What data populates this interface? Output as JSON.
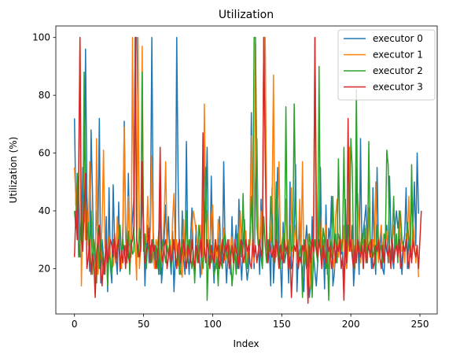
{
  "chart_data": {
    "type": "line",
    "title": "Utilization",
    "xlabel": "Index",
    "ylabel": "Utilization (%)",
    "xlim": [
      -13.5,
      262.5
    ],
    "ylim": [
      4.3,
      104.0
    ],
    "x_ticks": [
      0,
      50,
      100,
      150,
      200,
      250
    ],
    "y_ticks": [
      20,
      40,
      60,
      80,
      100
    ],
    "grid": false,
    "legend_position": "top-right",
    "series": [
      {
        "name": "executor 0",
        "color": "#1f77b4",
        "values": [
          72,
          42,
          38,
          52,
          24,
          25,
          55,
          36,
          96,
          45,
          33,
          19,
          68,
          47,
          21,
          26,
          40,
          33,
          72,
          15,
          30,
          24,
          19,
          38,
          12,
          48,
          21,
          15,
          49,
          30,
          24,
          18,
          43,
          19,
          22,
          29,
          71,
          36,
          24,
          53,
          28,
          30,
          38,
          45,
          100,
          100,
          72,
          33,
          26,
          47,
          35,
          14,
          28,
          35,
          22,
          40,
          100,
          33,
          20,
          28,
          26,
          18,
          48,
          15,
          22,
          31,
          42,
          28,
          38,
          24,
          18,
          33,
          12,
          24,
          100,
          51,
          22,
          18,
          40,
          23,
          18,
          64,
          26,
          18,
          30,
          41,
          22,
          18,
          35,
          26,
          28,
          17,
          24,
          30,
          65,
          38,
          62,
          22,
          21,
          52,
          26,
          15,
          30,
          24,
          20,
          38,
          25,
          20,
          57,
          28,
          15,
          24,
          30,
          18,
          38,
          22,
          28,
          35,
          20,
          44,
          24,
          16,
          28,
          37,
          22,
          16,
          20,
          30,
          74,
          35,
          20,
          45,
          65,
          30,
          18,
          44,
          22,
          100,
          100,
          35,
          22,
          27,
          14,
          48,
          15,
          24,
          30,
          55,
          28,
          22,
          10,
          36,
          22,
          25,
          28,
          15,
          50,
          20,
          22,
          30,
          56,
          12,
          25,
          36,
          22,
          20,
          12,
          28,
          35,
          24,
          10,
          15,
          38,
          25,
          19,
          14,
          22,
          32,
          55,
          20,
          30,
          13,
          42,
          18,
          34,
          30,
          45,
          14,
          18,
          26,
          22,
          32,
          30,
          25,
          26,
          11,
          44,
          20,
          30,
          28,
          26,
          35,
          14,
          22,
          55,
          30,
          18,
          65,
          26,
          33,
          37,
          42,
          25,
          28,
          30,
          20,
          48,
          26,
          18,
          55,
          25,
          24,
          35,
          20,
          18,
          28,
          35,
          22,
          52,
          32,
          24,
          20,
          35,
          40,
          34,
          38,
          26,
          18,
          28,
          32,
          48,
          20,
          31,
          26,
          45,
          35,
          50,
          28,
          60,
          39
        ]
      },
      {
        "name": "executor 1",
        "color": "#ff7f0e",
        "values": [
          55,
          44,
          30,
          45,
          100,
          14,
          40,
          57,
          30,
          40,
          28,
          57,
          40,
          30,
          24,
          11,
          65,
          18,
          25,
          23,
          36,
          61,
          27,
          29,
          15,
          31,
          24,
          20,
          21,
          26,
          24,
          38,
          29,
          22,
          20,
          36,
          69,
          30,
          22,
          45,
          30,
          24,
          100,
          32,
          28,
          16,
          100,
          20,
          28,
          97,
          28,
          32,
          29,
          45,
          28,
          34,
          59,
          24,
          20,
          30,
          28,
          32,
          22,
          28,
          30,
          39,
          57,
          28,
          25,
          30,
          22,
          37,
          46,
          23,
          30,
          21,
          30,
          20,
          17,
          37,
          23,
          26,
          30,
          29,
          24,
          33,
          40,
          37,
          32,
          28,
          22,
          35,
          18,
          24,
          77,
          36,
          40,
          28,
          25,
          38,
          42,
          22,
          30,
          20,
          37,
          32,
          24,
          28,
          34,
          23,
          24,
          28,
          30,
          22,
          31,
          24,
          28,
          20,
          29,
          25,
          40,
          30,
          24,
          22,
          33,
          21,
          30,
          28,
          66,
          26,
          22,
          98,
          54,
          30,
          28,
          40,
          28,
          100,
          100,
          35,
          24,
          28,
          30,
          40,
          87,
          30,
          24,
          34,
          57,
          29,
          24,
          32,
          28,
          44,
          25,
          30,
          20,
          48,
          24,
          30,
          35,
          22,
          28,
          44,
          25,
          57,
          22,
          30,
          20,
          32,
          28,
          13,
          22,
          30,
          100,
          50,
          26,
          28,
          38,
          24,
          26,
          30,
          35,
          22,
          20,
          30,
          28,
          24,
          20,
          38,
          44,
          24,
          28,
          30,
          26,
          35,
          22,
          20,
          28,
          62,
          26,
          30,
          24,
          22,
          28,
          46,
          36,
          22,
          28,
          30,
          26,
          34,
          22,
          41,
          28,
          24,
          30,
          26,
          50,
          28,
          22,
          30,
          35,
          26,
          24,
          30,
          33,
          28,
          22,
          25,
          30,
          35,
          26,
          32,
          24,
          30,
          40,
          26,
          28,
          22,
          32,
          30,
          45,
          28,
          24,
          36,
          30,
          22,
          28,
          17
        ]
      },
      {
        "name": "executor 2",
        "color": "#2ca02c",
        "values": [
          40,
          34,
          53,
          24,
          30,
          38,
          28,
          88,
          45,
          30,
          36,
          22,
          40,
          18,
          30,
          25,
          15,
          34,
          20,
          30,
          25,
          18,
          22,
          30,
          14,
          26,
          22,
          18,
          30,
          28,
          22,
          26,
          30,
          35,
          24,
          30,
          25,
          28,
          22,
          33,
          18,
          30,
          25,
          26,
          100,
          30,
          24,
          34,
          28,
          88,
          26,
          32,
          20,
          30,
          25,
          28,
          22,
          30,
          26,
          28,
          20,
          33,
          18,
          24,
          30,
          26,
          22,
          28,
          24,
          30,
          20,
          26,
          28,
          24,
          22,
          28,
          18,
          26,
          30,
          28,
          24,
          40,
          22,
          30,
          24,
          20,
          26,
          15,
          28,
          22,
          35,
          30,
          24,
          20,
          28,
          55,
          9,
          24,
          30,
          22,
          26,
          18,
          20,
          24,
          14,
          28,
          22,
          20,
          30,
          32,
          26,
          22,
          28,
          24,
          14,
          20,
          26,
          18,
          32,
          22,
          30,
          24,
          46,
          28,
          22,
          20,
          26,
          30,
          45,
          30,
          100,
          100,
          35,
          28,
          30,
          24,
          20,
          38,
          28,
          22,
          30,
          26,
          45,
          35,
          22,
          28,
          50,
          30,
          24,
          20,
          28,
          32,
          22,
          76,
          30,
          24,
          35,
          26,
          28,
          77,
          44,
          30,
          22,
          26,
          28,
          10,
          30,
          24,
          20,
          22,
          32,
          28,
          10,
          24,
          30,
          26,
          22,
          90,
          28,
          24,
          34,
          30,
          20,
          26,
          9,
          30,
          24,
          45,
          28,
          32,
          22,
          58,
          34,
          26,
          30,
          62,
          28,
          22,
          35,
          30,
          65,
          55,
          24,
          20,
          82,
          30,
          28,
          26,
          32,
          20,
          35,
          28,
          22,
          64,
          30,
          26,
          24,
          28,
          20,
          35,
          30,
          26,
          28,
          22,
          32,
          30,
          61,
          56,
          28,
          24,
          30,
          45,
          26,
          32,
          22,
          40,
          38,
          30,
          28,
          26,
          28,
          36,
          30,
          24,
          56,
          30
        ]
      },
      {
        "name": "executor 3",
        "color": "#d62728",
        "values": [
          24,
          40,
          30,
          53,
          100,
          30,
          26,
          40,
          53,
          20,
          24,
          30,
          18,
          25,
          22,
          10,
          25,
          30,
          35,
          20,
          14,
          24,
          18,
          30,
          22,
          26,
          30,
          28,
          24,
          32,
          22,
          28,
          30,
          20,
          26,
          22,
          28,
          20,
          30,
          24,
          22,
          28,
          30,
          35,
          100,
          30,
          26,
          24,
          28,
          57,
          30,
          22,
          26,
          28,
          34,
          22,
          30,
          26,
          28,
          20,
          24,
          30,
          62,
          26,
          22,
          28,
          30,
          20,
          24,
          28,
          22,
          26,
          30,
          24,
          20,
          28,
          30,
          22,
          26,
          30,
          24,
          20,
          28,
          26,
          22,
          30,
          24,
          20,
          28,
          26,
          22,
          30,
          24,
          67,
          28,
          22,
          30,
          26,
          20,
          28,
          24,
          22,
          30,
          26,
          28,
          20,
          24,
          30,
          22,
          28,
          26,
          30,
          20,
          24,
          28,
          22,
          30,
          26,
          24,
          20,
          28,
          30,
          22,
          24,
          30,
          26,
          28,
          22,
          20,
          30,
          24,
          28,
          22,
          26,
          30,
          24,
          28,
          100,
          60,
          28,
          22,
          30,
          26,
          24,
          28,
          22,
          30,
          26,
          20,
          28,
          24,
          22,
          30,
          26,
          28,
          20,
          24,
          10,
          22,
          28,
          26,
          30,
          20,
          24,
          22,
          28,
          26,
          30,
          24,
          8,
          28,
          22,
          30,
          26,
          100,
          28,
          24,
          30,
          26,
          20,
          28,
          24,
          22,
          30,
          26,
          28,
          20,
          24,
          30,
          22,
          28,
          26,
          30,
          20,
          24,
          9,
          30,
          22,
          72,
          26,
          30,
          24,
          20,
          28,
          22,
          30,
          26,
          24,
          28,
          20,
          30,
          22,
          26,
          28,
          24,
          30,
          20,
          22,
          28,
          26,
          30,
          24,
          20,
          28,
          22,
          30,
          26,
          24,
          28,
          20,
          30,
          22,
          26,
          28,
          24,
          30,
          20,
          22,
          28,
          26,
          30,
          24,
          20,
          28,
          22,
          30,
          26,
          24,
          28,
          20,
          30,
          40
        ]
      }
    ]
  }
}
